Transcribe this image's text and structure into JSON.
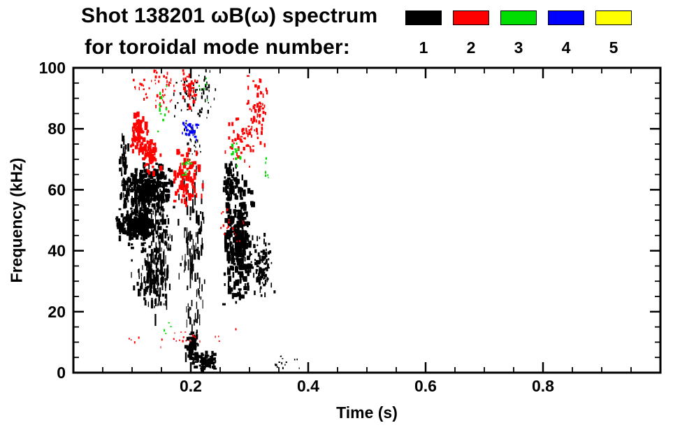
{
  "header": {
    "title": "Shot 138201 ωB(ω) spectrum",
    "subtitle": "for toroidal mode number:"
  },
  "chart_data": {
    "type": "scatter",
    "title": "Shot 138201 ωB(ω) spectrum",
    "subtitle": "for toroidal mode number:",
    "xlabel": "Time (s)",
    "ylabel": "Frequency (kHz)",
    "xlim": [
      0,
      1.0
    ],
    "ylim": [
      0,
      100
    ],
    "xticks_major": [
      0.2,
      0.4,
      0.6,
      0.8
    ],
    "xtick_labels": [
      "0.2",
      "0.4",
      "0.6",
      "0.8"
    ],
    "xminor_step": 0.05,
    "yticks_major": [
      0,
      20,
      40,
      60,
      80,
      100
    ],
    "ytick_labels": [
      "0",
      "20",
      "40",
      "60",
      "80",
      "100"
    ],
    "yminor_step": 5,
    "grid": false,
    "legend_position": "top-right",
    "legend": [
      {
        "label": "1",
        "color": "#000000"
      },
      {
        "label": "2",
        "color": "#ff0000"
      },
      {
        "label": "3",
        "color": "#00dd00"
      },
      {
        "label": "4",
        "color": "#0000ff"
      },
      {
        "label": "5",
        "color": "#ffff00"
      }
    ],
    "clusters": [
      {
        "mode": "1",
        "color": "#000000",
        "t": [
          0.068,
          0.175
        ],
        "f": [
          38,
          70
        ],
        "n": 300,
        "w": [
          1.5,
          5
        ],
        "h": [
          2,
          9
        ],
        "seed": 1
      },
      {
        "mode": "1",
        "color": "#000000",
        "t": [
          0.075,
          0.135
        ],
        "f": [
          44,
          53
        ],
        "n": 150,
        "w": [
          2,
          7
        ],
        "h": [
          3,
          8
        ],
        "seed": 2
      },
      {
        "mode": "1",
        "color": "#000000",
        "t": [
          0.085,
          0.175
        ],
        "f": [
          54,
          68
        ],
        "n": 160,
        "w": [
          2,
          6
        ],
        "h": [
          3,
          9
        ],
        "seed": 3
      },
      {
        "mode": "1",
        "color": "#000000",
        "t": [
          0.095,
          0.165
        ],
        "f": [
          20,
          42
        ],
        "n": 120,
        "w": [
          1,
          3.5
        ],
        "h": [
          3,
          12
        ],
        "seed": 4
      },
      {
        "mode": "1",
        "color": "#000000",
        "t": [
          0.128,
          0.168
        ],
        "f": [
          16,
          66
        ],
        "n": 80,
        "w": [
          1,
          2.5
        ],
        "h": [
          5,
          18
        ],
        "seed": 5
      },
      {
        "mode": "1",
        "color": "#000000",
        "t": [
          0.078,
          0.095
        ],
        "f": [
          55,
          78
        ],
        "n": 50,
        "w": [
          1,
          3
        ],
        "h": [
          4,
          12
        ],
        "seed": 6
      },
      {
        "mode": "1",
        "color": "#000000",
        "t": [
          0.178,
          0.228
        ],
        "f": [
          4,
          68
        ],
        "n": 120,
        "w": [
          1,
          2.5
        ],
        "h": [
          4,
          16
        ],
        "seed": 7
      },
      {
        "mode": "1",
        "color": "#000000",
        "t": [
          0.19,
          0.215
        ],
        "f": [
          3,
          14
        ],
        "n": 90,
        "w": [
          2,
          6
        ],
        "h": [
          2,
          6
        ],
        "seed": 8
      },
      {
        "mode": "1",
        "color": "#000000",
        "t": [
          0.205,
          0.245
        ],
        "f": [
          0,
          7
        ],
        "n": 90,
        "w": [
          2,
          6
        ],
        "h": [
          2,
          5
        ],
        "seed": 9
      },
      {
        "mode": "1",
        "color": "#000000",
        "t": [
          0.255,
          0.308
        ],
        "f": [
          21,
          66
        ],
        "n": 260,
        "w": [
          2,
          6
        ],
        "h": [
          3,
          10
        ],
        "seed": 10
      },
      {
        "mode": "1",
        "color": "#000000",
        "t": [
          0.298,
          0.345
        ],
        "f": [
          24,
          47
        ],
        "n": 100,
        "w": [
          1.5,
          4
        ],
        "h": [
          2,
          8
        ],
        "seed": 11
      },
      {
        "mode": "1",
        "color": "#000000",
        "t": [
          0.168,
          0.255
        ],
        "f": [
          82,
          100
        ],
        "n": 70,
        "w": [
          1,
          3
        ],
        "h": [
          2,
          6
        ],
        "seed": 12
      },
      {
        "mode": "1",
        "color": "#000000",
        "t": [
          0.255,
          0.285
        ],
        "f": [
          56,
          70
        ],
        "n": 60,
        "w": [
          1.5,
          4
        ],
        "h": [
          3,
          8
        ],
        "seed": 13
      },
      {
        "mode": "1",
        "color": "#000000",
        "t": [
          0.33,
          0.4
        ],
        "f": [
          0,
          6
        ],
        "n": 14,
        "w": [
          1,
          3
        ],
        "h": [
          1.5,
          3.5
        ],
        "seed": 14
      },
      {
        "mode": "1",
        "color": "#000000",
        "t": [
          0.185,
          0.22
        ],
        "f": [
          70,
          82
        ],
        "n": 25,
        "w": [
          1,
          2.5
        ],
        "h": [
          2,
          5
        ],
        "seed": 15
      },
      {
        "mode": "2",
        "color": "#ff0000",
        "t": [
          0.095,
          0.128
        ],
        "f": [
          70,
          86
        ],
        "n": 70,
        "w": [
          2,
          5
        ],
        "h": [
          3,
          9
        ],
        "seed": 16
      },
      {
        "mode": "2",
        "color": "#ff0000",
        "t": [
          0.115,
          0.15
        ],
        "f": [
          64,
          79
        ],
        "n": 55,
        "w": [
          2,
          5
        ],
        "h": [
          3,
          8
        ],
        "seed": 17
      },
      {
        "mode": "2",
        "color": "#ff0000",
        "t": [
          0.165,
          0.222
        ],
        "f": [
          54,
          74
        ],
        "n": 80,
        "w": [
          2,
          5
        ],
        "h": [
          3,
          9
        ],
        "seed": 18
      },
      {
        "mode": "2",
        "color": "#ff0000",
        "t": [
          0.182,
          0.215
        ],
        "f": [
          86,
          100
        ],
        "n": 45,
        "w": [
          1.5,
          4
        ],
        "h": [
          2,
          6
        ],
        "seed": 19
      },
      {
        "mode": "2",
        "color": "#ff0000",
        "t": [
          0.13,
          0.175
        ],
        "f": [
          84,
          100
        ],
        "n": 35,
        "w": [
          1,
          3
        ],
        "h": [
          2,
          5
        ],
        "seed": 20
      },
      {
        "mode": "2",
        "color": "#ff0000",
        "t": [
          0.255,
          0.315
        ],
        "f": [
          67,
          86
        ],
        "n": 50,
        "w": [
          1.5,
          4
        ],
        "h": [
          2,
          6
        ],
        "seed": 21
      },
      {
        "mode": "2",
        "color": "#ff0000",
        "t": [
          0.295,
          0.335
        ],
        "f": [
          74,
          100
        ],
        "n": 60,
        "w": [
          1.5,
          4
        ],
        "h": [
          2,
          7
        ],
        "seed": 22
      },
      {
        "mode": "2",
        "color": "#ff0000",
        "t": [
          0.08,
          0.31
        ],
        "f": [
          7,
          15
        ],
        "n": 26,
        "w": [
          1,
          2.5
        ],
        "h": [
          1.5,
          3.5
        ],
        "seed": 23
      },
      {
        "mode": "2",
        "color": "#ff0000",
        "t": [
          0.24,
          0.3
        ],
        "f": [
          40,
          56
        ],
        "n": 18,
        "w": [
          1,
          2.5
        ],
        "h": [
          1.5,
          4
        ],
        "seed": 24
      },
      {
        "mode": "2",
        "color": "#ff0000",
        "t": [
          0.1,
          0.155
        ],
        "f": [
          88,
          100
        ],
        "n": 20,
        "w": [
          1,
          3
        ],
        "h": [
          2,
          5
        ],
        "seed": 25
      },
      {
        "mode": "3",
        "color": "#00dd00",
        "t": [
          0.138,
          0.162
        ],
        "f": [
          78,
          97
        ],
        "n": 12,
        "w": [
          1.5,
          3
        ],
        "h": [
          2,
          5
        ],
        "seed": 26
      },
      {
        "mode": "3",
        "color": "#00dd00",
        "t": [
          0.182,
          0.205
        ],
        "f": [
          64,
          73
        ],
        "n": 10,
        "w": [
          1.5,
          3.5
        ],
        "h": [
          2,
          5
        ],
        "seed": 27
      },
      {
        "mode": "3",
        "color": "#00dd00",
        "t": [
          0.265,
          0.288
        ],
        "f": [
          64,
          79
        ],
        "n": 12,
        "w": [
          1.5,
          3.5
        ],
        "h": [
          2,
          6
        ],
        "seed": 28
      },
      {
        "mode": "3",
        "color": "#00dd00",
        "t": [
          0.152,
          0.168
        ],
        "f": [
          12,
          18
        ],
        "n": 5,
        "w": [
          1.5,
          3
        ],
        "h": [
          1.5,
          3
        ],
        "seed": 29
      },
      {
        "mode": "3",
        "color": "#00dd00",
        "t": [
          0.205,
          0.232
        ],
        "f": [
          86,
          97
        ],
        "n": 6,
        "w": [
          1,
          2.5
        ],
        "h": [
          2,
          4
        ],
        "seed": 30
      },
      {
        "mode": "3",
        "color": "#00dd00",
        "t": [
          0.32,
          0.335
        ],
        "f": [
          60,
          72
        ],
        "n": 6,
        "w": [
          1,
          2.5
        ],
        "h": [
          2,
          4
        ],
        "seed": 31
      },
      {
        "mode": "4",
        "color": "#0000ff",
        "t": [
          0.183,
          0.216
        ],
        "f": [
          76,
          84
        ],
        "n": 30,
        "w": [
          1.5,
          4
        ],
        "h": [
          2,
          5
        ],
        "seed": 32
      }
    ]
  }
}
